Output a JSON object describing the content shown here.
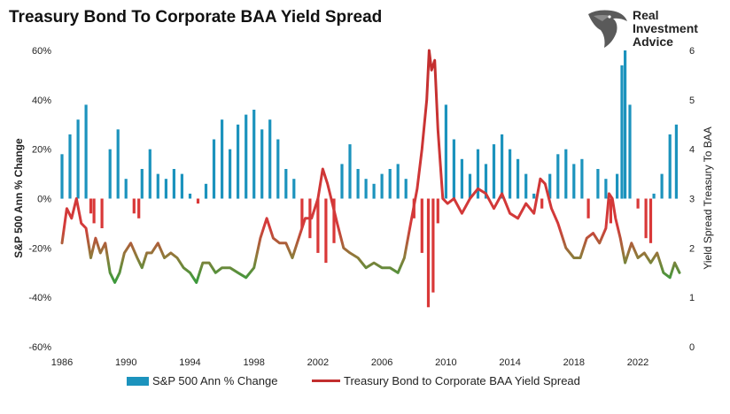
{
  "title": "Treasury Bond To Corporate BAA Yield Spread",
  "logo": {
    "lines": [
      "Real",
      "Investment",
      "Advice"
    ],
    "icon": "eagle-head-icon"
  },
  "chart_data": {
    "type": "bar+line",
    "title": "Treasury Bond To Corporate BAA Yield Spread",
    "xlabel": "",
    "ylabel_left": "S&P 500 Ann % Change",
    "ylabel_right": "Yield Spread Treasury To BAA",
    "ylim_left": [
      -60,
      60
    ],
    "ylim_right": [
      0,
      6
    ],
    "xlim": [
      1986,
      2024.6
    ],
    "x_ticks": [
      "1986",
      "1990",
      "1994",
      "1998",
      "2002",
      "2006",
      "2010",
      "2014",
      "2018",
      "2022"
    ],
    "y_left_ticks": [
      "60%",
      "40%",
      "20%",
      "0%",
      "-20%",
      "-40%",
      "-60%"
    ],
    "y_right_ticks": [
      "6",
      "5",
      "4",
      "3",
      "2",
      "1",
      "0"
    ],
    "grid": false,
    "legend_position": "bottom",
    "colors": {
      "bars": "#1c93bd",
      "bars_negative": "#d93838",
      "line_high": "#c22e2e",
      "line_low": "#3f9a3c"
    },
    "series": [
      {
        "name": "S&P 500 Ann % Change",
        "kind": "bar",
        "x": [
          1986.0,
          1986.5,
          1987.0,
          1987.5,
          1987.8,
          1988.0,
          1988.5,
          1989.0,
          1989.5,
          1990.0,
          1990.5,
          1990.8,
          1991.0,
          1991.5,
          1992.0,
          1992.5,
          1993.0,
          1993.5,
          1994.0,
          1994.5,
          1995.0,
          1995.5,
          1996.0,
          1996.5,
          1997.0,
          1997.5,
          1998.0,
          1998.5,
          1999.0,
          1999.5,
          2000.0,
          2000.5,
          2001.0,
          2001.5,
          2002.0,
          2002.5,
          2003.0,
          2003.5,
          2004.0,
          2004.5,
          2005.0,
          2005.5,
          2006.0,
          2006.5,
          2007.0,
          2007.5,
          2008.0,
          2008.5,
          2008.9,
          2009.2,
          2009.5,
          2010.0,
          2010.5,
          2011.0,
          2011.5,
          2012.0,
          2012.5,
          2013.0,
          2013.5,
          2014.0,
          2014.5,
          2015.0,
          2015.5,
          2016.0,
          2016.5,
          2017.0,
          2017.5,
          2018.0,
          2018.5,
          2018.9,
          2019.5,
          2020.0,
          2020.3,
          2020.7,
          2021.0,
          2021.2,
          2021.5,
          2022.0,
          2022.5,
          2022.8,
          2023.0,
          2023.5,
          2024.0,
          2024.4
        ],
        "values": [
          18,
          26,
          32,
          38,
          -6,
          -10,
          -12,
          20,
          28,
          8,
          -6,
          -8,
          12,
          20,
          10,
          8,
          12,
          10,
          2,
          -2,
          6,
          24,
          32,
          20,
          30,
          34,
          36,
          28,
          32,
          24,
          12,
          8,
          -12,
          -16,
          -22,
          -26,
          -18,
          14,
          22,
          12,
          8,
          6,
          10,
          12,
          14,
          8,
          -8,
          -22,
          -44,
          -38,
          -10,
          38,
          24,
          16,
          10,
          20,
          14,
          22,
          26,
          20,
          16,
          10,
          2,
          -4,
          10,
          18,
          20,
          14,
          16,
          -8,
          12,
          8,
          -10,
          10,
          54,
          60,
          38,
          -4,
          -16,
          -18,
          2,
          10,
          26,
          30
        ]
      },
      {
        "name": "Treasury Bond to Corporate BAA Yield Spread",
        "kind": "line",
        "x": [
          1986.0,
          1986.3,
          1986.6,
          1986.9,
          1987.2,
          1987.5,
          1987.8,
          1988.1,
          1988.4,
          1988.7,
          1989.0,
          1989.3,
          1989.6,
          1989.9,
          1990.3,
          1990.7,
          1991.0,
          1991.3,
          1991.6,
          1992.0,
          1992.4,
          1992.8,
          1993.2,
          1993.6,
          1994.0,
          1994.4,
          1994.8,
          1995.2,
          1995.6,
          1996.0,
          1996.5,
          1997.0,
          1997.5,
          1998.0,
          1998.4,
          1998.8,
          1999.2,
          1999.6,
          2000.0,
          2000.4,
          2000.8,
          2001.2,
          2001.6,
          2002.0,
          2002.3,
          2002.6,
          2002.9,
          2003.2,
          2003.6,
          2004.0,
          2004.5,
          2005.0,
          2005.5,
          2006.0,
          2006.5,
          2007.0,
          2007.4,
          2007.8,
          2008.2,
          2008.5,
          2008.8,
          2008.95,
          2009.1,
          2009.3,
          2009.5,
          2009.8,
          2010.1,
          2010.5,
          2011.0,
          2011.5,
          2012.0,
          2012.5,
          2013.0,
          2013.5,
          2014.0,
          2014.5,
          2015.0,
          2015.5,
          2015.9,
          2016.2,
          2016.6,
          2017.0,
          2017.5,
          2018.0,
          2018.4,
          2018.8,
          2019.2,
          2019.6,
          2020.0,
          2020.2,
          2020.4,
          2020.6,
          2020.9,
          2021.2,
          2021.6,
          2022.0,
          2022.4,
          2022.8,
          2023.2,
          2023.6,
          2024.0,
          2024.3,
          2024.6
        ],
        "values": [
          2.1,
          2.8,
          2.6,
          3.0,
          2.5,
          2.4,
          1.8,
          2.2,
          1.9,
          2.1,
          1.5,
          1.3,
          1.5,
          1.9,
          2.1,
          1.8,
          1.6,
          1.9,
          1.9,
          2.1,
          1.8,
          1.9,
          1.8,
          1.6,
          1.5,
          1.3,
          1.7,
          1.7,
          1.5,
          1.6,
          1.6,
          1.5,
          1.4,
          1.6,
          2.2,
          2.6,
          2.2,
          2.1,
          2.1,
          1.8,
          2.2,
          2.6,
          2.6,
          3.0,
          3.6,
          3.3,
          2.9,
          2.5,
          2.0,
          1.9,
          1.8,
          1.6,
          1.7,
          1.6,
          1.6,
          1.5,
          1.8,
          2.5,
          3.2,
          4.0,
          5.0,
          6.0,
          5.6,
          5.8,
          4.4,
          3.0,
          2.9,
          3.0,
          2.7,
          3.0,
          3.2,
          3.1,
          2.8,
          3.1,
          2.7,
          2.6,
          2.9,
          2.7,
          3.4,
          3.3,
          2.8,
          2.5,
          2.0,
          1.8,
          1.8,
          2.2,
          2.3,
          2.1,
          2.4,
          3.1,
          3.0,
          2.6,
          2.2,
          1.7,
          2.1,
          1.8,
          1.9,
          1.7,
          1.9,
          1.5,
          1.4,
          1.7,
          1.5
        ]
      }
    ]
  },
  "legend": [
    {
      "label": "S&P 500 Ann % Change"
    },
    {
      "label": "Treasury Bond to Corporate BAA Yield Spread"
    }
  ]
}
